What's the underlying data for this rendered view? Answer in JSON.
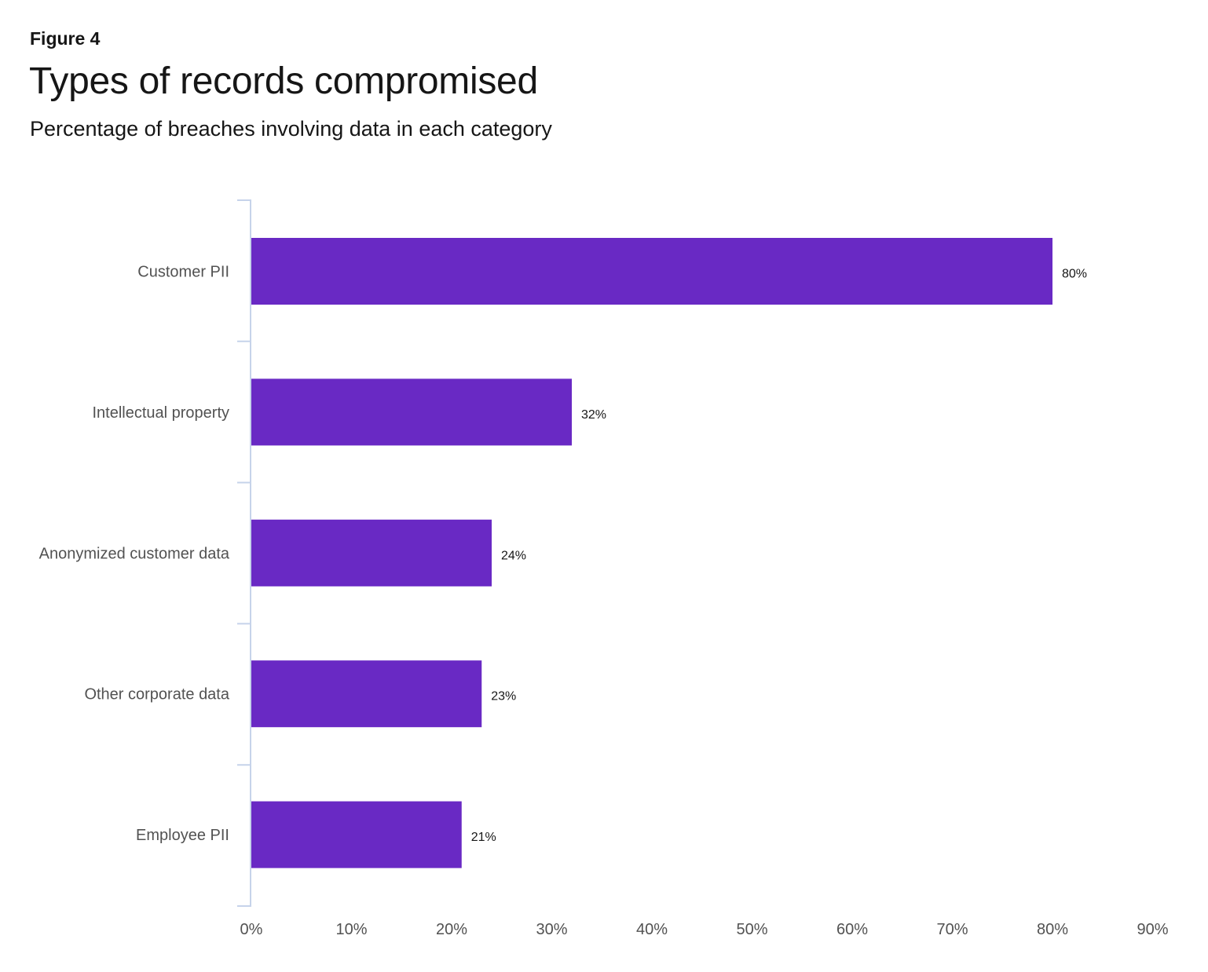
{
  "header": {
    "figure_label": "Figure 4",
    "title": "Types of records compromised",
    "subtitle": "Percentage of breaches involving data in each category"
  },
  "colors": {
    "bar": "#6929c4",
    "axis": "#c6d3ea",
    "text": "#161616",
    "muted_text": "#525252"
  },
  "chart_data": {
    "type": "bar",
    "orientation": "horizontal",
    "title": "Types of records compromised",
    "subtitle": "Percentage of breaches involving data in each category",
    "categories": [
      "Customer PII",
      "Intellectual property",
      "Anonymized customer data",
      "Other corporate data",
      "Employee PII"
    ],
    "values": [
      80,
      32,
      24,
      23,
      21
    ],
    "value_labels": [
      "80%",
      "32%",
      "24%",
      "23%",
      "21%"
    ],
    "xlim": [
      0,
      90
    ],
    "x_ticks": [
      0,
      10,
      20,
      30,
      40,
      50,
      60,
      70,
      80,
      90
    ],
    "x_tick_labels": [
      "0%",
      "10%",
      "20%",
      "30%",
      "40%",
      "50%",
      "60%",
      "70%",
      "80%",
      "90%"
    ],
    "xlabel": "",
    "ylabel": "",
    "grid": false,
    "legend": "none"
  }
}
